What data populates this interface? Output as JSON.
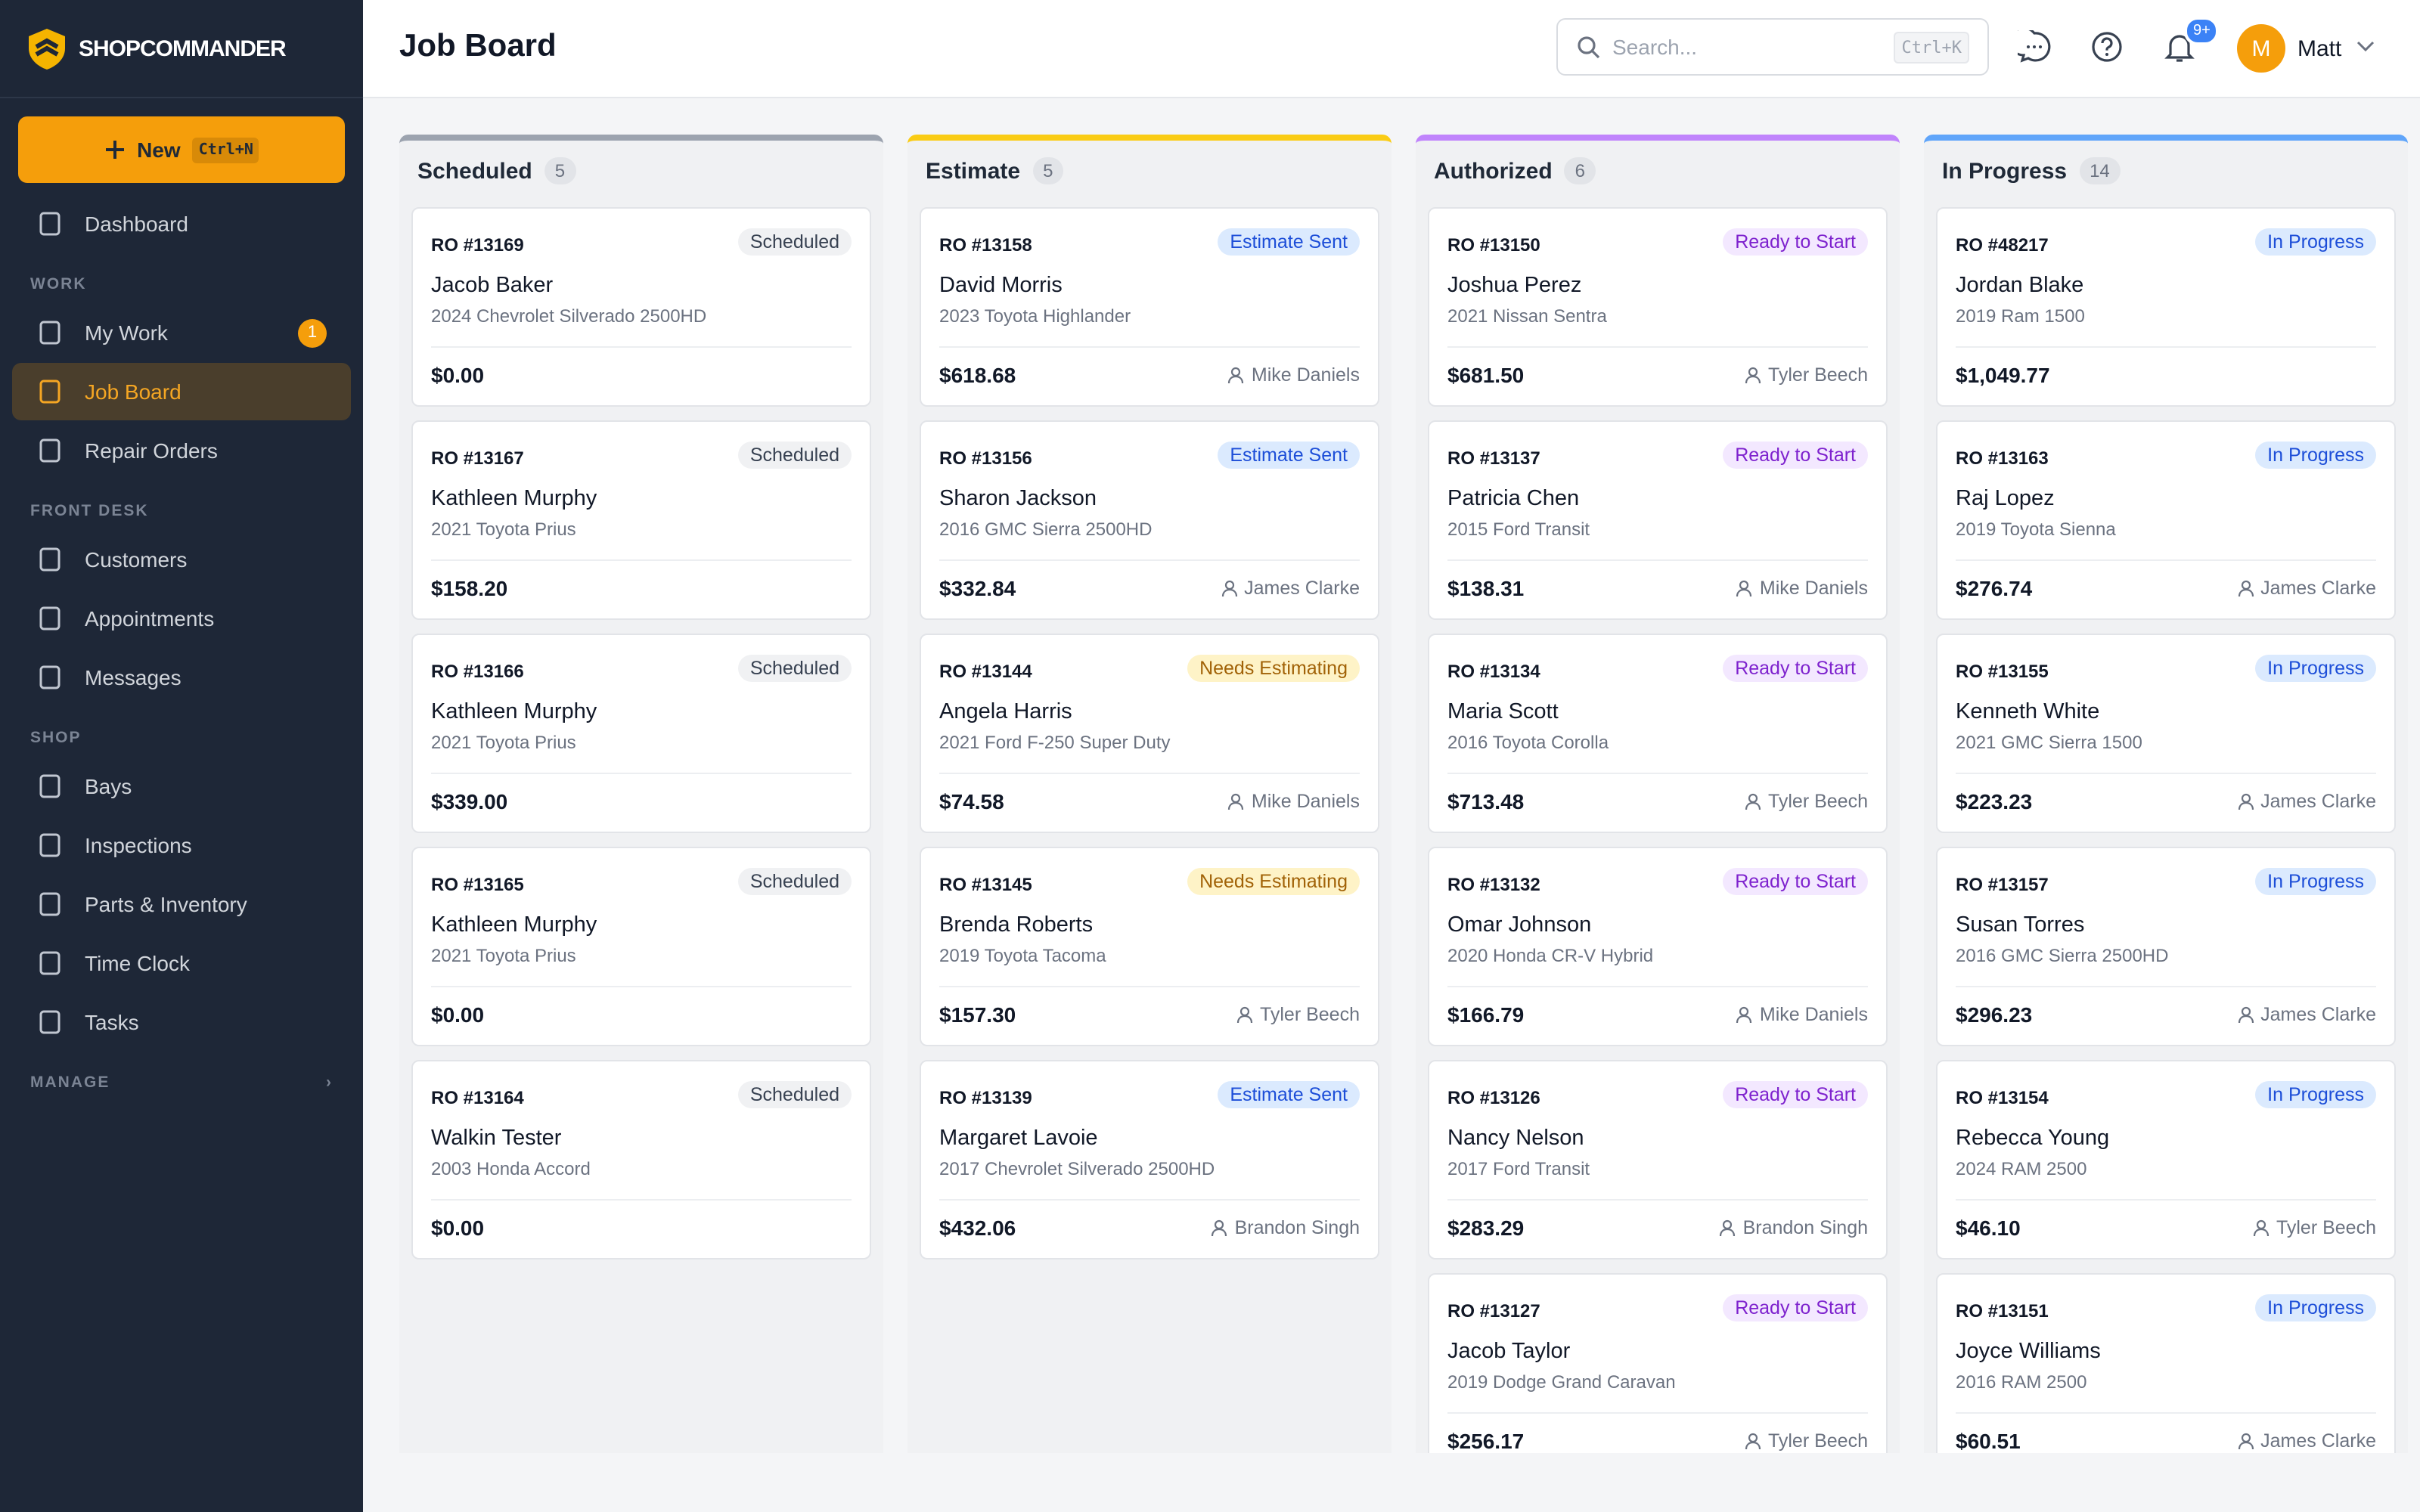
{
  "brand": "SHOPCOMMANDER",
  "sidebar": {
    "new_button": "New",
    "new_shortcut": "Ctrl+N",
    "sections": [
      {
        "items": [
          {
            "label": "Dashboard"
          }
        ]
      },
      {
        "heading": "WORK",
        "items": [
          {
            "label": "My Work",
            "badge": "1"
          },
          {
            "label": "Job Board",
            "active": true
          },
          {
            "label": "Repair Orders"
          }
        ]
      },
      {
        "heading": "FRONT DESK",
        "items": [
          {
            "label": "Customers"
          },
          {
            "label": "Appointments"
          },
          {
            "label": "Messages"
          }
        ]
      },
      {
        "heading": "SHOP",
        "items": [
          {
            "label": "Bays"
          },
          {
            "label": "Inspections"
          },
          {
            "label": "Parts & Inventory"
          },
          {
            "label": "Time Clock"
          },
          {
            "label": "Tasks"
          }
        ]
      },
      {
        "heading": "MANAGE",
        "items": []
      }
    ]
  },
  "header": {
    "title": "Job Board",
    "search_placeholder": "Search...",
    "search_shortcut": "Ctrl+K",
    "notification_badge": "9+",
    "avatar": "M",
    "user": "Matt"
  },
  "status_colors": {
    "Scheduled": [
      "#f0f1f3",
      "#374151"
    ],
    "Estimate Sent": [
      "#dbeafe",
      "#1d4ed8"
    ],
    "Needs Estimating": [
      "#fef3c7",
      "#a16207"
    ],
    "Ready to Start": [
      "#f3e8ff",
      "#7e22ce"
    ],
    "In Progress": [
      "#dbeafe",
      "#1d4ed8"
    ]
  },
  "columns": [
    {
      "name": "Scheduled",
      "count": 5,
      "color": "#9ca3af",
      "cards": [
        {
          "ro": "RO #13169",
          "status": "Scheduled",
          "customer": "Jacob Baker",
          "vehicle": "2024 Chevrolet Silverado 2500HD",
          "amount": "$0.00"
        },
        {
          "ro": "RO #13167",
          "status": "Scheduled",
          "customer": "Kathleen Murphy",
          "vehicle": "2021 Toyota Prius",
          "amount": "$158.20"
        },
        {
          "ro": "RO #13166",
          "status": "Scheduled",
          "customer": "Kathleen Murphy",
          "vehicle": "2021 Toyota Prius",
          "amount": "$339.00"
        },
        {
          "ro": "RO #13165",
          "status": "Scheduled",
          "customer": "Kathleen Murphy",
          "vehicle": "2021 Toyota Prius",
          "amount": "$0.00"
        },
        {
          "ro": "RO #13164",
          "status": "Scheduled",
          "customer": "Walkin Tester",
          "vehicle": "2003 Honda Accord",
          "amount": "$0.00"
        }
      ]
    },
    {
      "name": "Estimate",
      "count": 5,
      "color": "#facc15",
      "cards": [
        {
          "ro": "RO #13158",
          "status": "Estimate Sent",
          "customer": "David Morris",
          "vehicle": "2023 Toyota Highlander",
          "amount": "$618.68",
          "tech": "Mike Daniels"
        },
        {
          "ro": "RO #13156",
          "status": "Estimate Sent",
          "customer": "Sharon Jackson",
          "vehicle": "2016 GMC Sierra 2500HD",
          "amount": "$332.84",
          "tech": "James Clarke"
        },
        {
          "ro": "RO #13144",
          "status": "Needs Estimating",
          "customer": "Angela Harris",
          "vehicle": "2021 Ford F-250 Super Duty",
          "amount": "$74.58",
          "tech": "Mike Daniels"
        },
        {
          "ro": "RO #13145",
          "status": "Needs Estimating",
          "customer": "Brenda Roberts",
          "vehicle": "2019 Toyota Tacoma",
          "amount": "$157.30",
          "tech": "Tyler Beech"
        },
        {
          "ro": "RO #13139",
          "status": "Estimate Sent",
          "customer": "Margaret Lavoie",
          "vehicle": "2017 Chevrolet Silverado 2500HD",
          "amount": "$432.06",
          "tech": "Brandon Singh"
        }
      ]
    },
    {
      "name": "Authorized",
      "count": 6,
      "color": "#c084fc",
      "cards": [
        {
          "ro": "RO #13150",
          "status": "Ready to Start",
          "customer": "Joshua Perez",
          "vehicle": "2021 Nissan Sentra",
          "amount": "$681.50",
          "tech": "Tyler Beech"
        },
        {
          "ro": "RO #13137",
          "status": "Ready to Start",
          "customer": "Patricia Chen",
          "vehicle": "2015 Ford Transit",
          "amount": "$138.31",
          "tech": "Mike Daniels"
        },
        {
          "ro": "RO #13134",
          "status": "Ready to Start",
          "customer": "Maria Scott",
          "vehicle": "2016 Toyota Corolla",
          "amount": "$713.48",
          "tech": "Tyler Beech"
        },
        {
          "ro": "RO #13132",
          "status": "Ready to Start",
          "customer": "Omar Johnson",
          "vehicle": "2020 Honda CR-V Hybrid",
          "amount": "$166.79",
          "tech": "Mike Daniels"
        },
        {
          "ro": "RO #13126",
          "status": "Ready to Start",
          "customer": "Nancy Nelson",
          "vehicle": "2017 Ford Transit",
          "amount": "$283.29",
          "tech": "Brandon Singh"
        },
        {
          "ro": "RO #13127",
          "status": "Ready to Start",
          "customer": "Jacob Taylor",
          "vehicle": "2019 Dodge Grand Caravan",
          "amount": "$256.17",
          "tech": "Tyler Beech"
        }
      ]
    },
    {
      "name": "In Progress",
      "count": 14,
      "color": "#60a5fa",
      "cards": [
        {
          "ro": "RO #48217",
          "status": "In Progress",
          "customer": "Jordan Blake",
          "vehicle": "2019 Ram 1500",
          "amount": "$1,049.77"
        },
        {
          "ro": "RO #13163",
          "status": "In Progress",
          "customer": "Raj Lopez",
          "vehicle": "2019 Toyota Sienna",
          "amount": "$276.74",
          "tech": "James Clarke"
        },
        {
          "ro": "RO #13155",
          "status": "In Progress",
          "customer": "Kenneth White",
          "vehicle": "2021 GMC Sierra 1500",
          "amount": "$223.23",
          "tech": "James Clarke"
        },
        {
          "ro": "RO #13157",
          "status": "In Progress",
          "customer": "Susan Torres",
          "vehicle": "2016 GMC Sierra 2500HD",
          "amount": "$296.23",
          "tech": "James Clarke"
        },
        {
          "ro": "RO #13154",
          "status": "In Progress",
          "customer": "Rebecca Young",
          "vehicle": "2024 RAM 2500",
          "amount": "$46.10",
          "tech": "Tyler Beech"
        },
        {
          "ro": "RO #13151",
          "status": "In Progress",
          "customer": "Joyce Williams",
          "vehicle": "2016 RAM 2500",
          "amount": "$60.51",
          "tech": "James Clarke"
        }
      ]
    }
  ]
}
